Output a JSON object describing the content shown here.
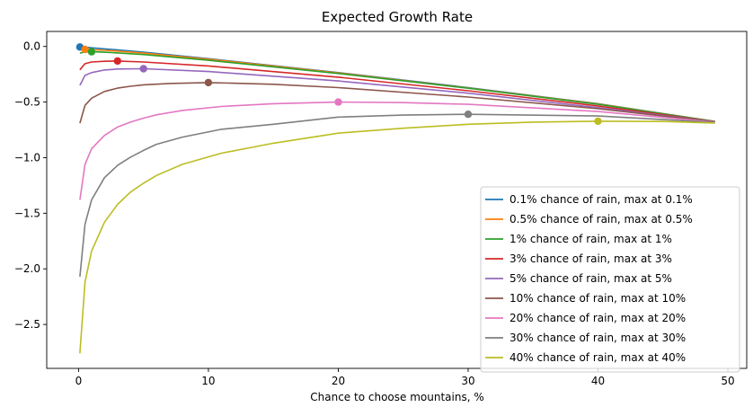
{
  "chart_data": {
    "type": "line",
    "title": "Expected Growth Rate",
    "xlabel": "Chance to choose mountains, %",
    "ylabel": "",
    "xlim": [
      -2.45,
      51.45
    ],
    "ylim": [
      -2.895,
      0.135
    ],
    "xticks": [
      0,
      10,
      20,
      30,
      40,
      50
    ],
    "yticks": [
      0.0,
      -0.5,
      -1.0,
      -1.5,
      -2.0,
      -2.5
    ],
    "ytick_labels": [
      "0.0",
      "−0.5",
      "−1.0",
      "−1.5",
      "−2.0",
      "−2.5"
    ],
    "grid": false,
    "legend_position": "lower right",
    "series": [
      {
        "name": "0.1% chance of rain, max at 0.1%",
        "color": "#1f77b4",
        "x": [
          0.1,
          0.5,
          1,
          2,
          3,
          5,
          10,
          20,
          30,
          40,
          49
        ],
        "y": [
          -0.005,
          -0.007,
          -0.012,
          -0.022,
          -0.031,
          -0.052,
          -0.11,
          -0.235,
          -0.37,
          -0.515,
          -0.675
        ],
        "max": [
          0.1,
          -0.005
        ]
      },
      {
        "name": "0.5% chance of rain, max at 0.5%",
        "color": "#ff7f0e",
        "x": [
          0.1,
          0.5,
          1,
          2,
          3,
          5,
          10,
          20,
          30,
          40,
          49
        ],
        "y": [
          -0.03,
          -0.027,
          -0.029,
          -0.035,
          -0.042,
          -0.06,
          -0.115,
          -0.238,
          -0.373,
          -0.517,
          -0.675
        ],
        "max": [
          0.5,
          -0.027
        ]
      },
      {
        "name": "1% chance of rain, max at 1%",
        "color": "#2ca02c",
        "x": [
          0.1,
          0.5,
          1,
          2,
          3,
          5,
          10,
          20,
          30,
          40,
          49
        ],
        "y": [
          -0.06,
          -0.05,
          -0.048,
          -0.052,
          -0.058,
          -0.073,
          -0.124,
          -0.243,
          -0.376,
          -0.52,
          -0.675
        ],
        "max": [
          1,
          -0.048
        ]
      },
      {
        "name": "3% chance of rain, max at 3%",
        "color": "#d62728",
        "x": [
          0.1,
          0.5,
          1,
          2,
          3,
          5,
          10,
          20,
          30,
          40,
          49
        ],
        "y": [
          -0.21,
          -0.155,
          -0.14,
          -0.133,
          -0.131,
          -0.14,
          -0.175,
          -0.276,
          -0.398,
          -0.535,
          -0.676
        ],
        "max": [
          3,
          -0.131
        ]
      },
      {
        "name": "5% chance of rain, max at 5%",
        "color": "#9467bd",
        "x": [
          0.1,
          0.5,
          1,
          2,
          3,
          5,
          10,
          20,
          30,
          40,
          49
        ],
        "y": [
          -0.35,
          -0.26,
          -0.235,
          -0.212,
          -0.203,
          -0.2,
          -0.225,
          -0.31,
          -0.42,
          -0.55,
          -0.677
        ],
        "max": [
          5,
          -0.2
        ]
      },
      {
        "name": "10% chance of rain, max at 10%",
        "color": "#8c564b",
        "x": [
          0.1,
          0.5,
          1,
          2,
          3,
          4,
          5,
          7,
          10,
          15,
          20,
          30,
          40,
          49
        ],
        "y": [
          -0.69,
          -0.53,
          -0.465,
          -0.405,
          -0.375,
          -0.358,
          -0.345,
          -0.333,
          -0.325,
          -0.34,
          -0.37,
          -0.455,
          -0.56,
          -0.678
        ],
        "max": [
          10,
          -0.325
        ]
      },
      {
        "name": "20% chance of rain, max at 20%",
        "color": "#e377c2",
        "x": [
          0.1,
          0.5,
          1,
          2,
          3,
          4,
          5,
          6,
          8,
          11,
          15,
          20,
          25,
          30,
          40,
          49
        ],
        "y": [
          -1.38,
          -1.06,
          -0.92,
          -0.8,
          -0.725,
          -0.68,
          -0.645,
          -0.615,
          -0.575,
          -0.54,
          -0.515,
          -0.5,
          -0.505,
          -0.52,
          -0.585,
          -0.68
        ],
        "max": [
          20,
          -0.5
        ]
      },
      {
        "name": "30% chance of rain, max at 30%",
        "color": "#7f7f7f",
        "x": [
          0.1,
          0.5,
          1,
          2,
          3,
          4,
          5,
          6,
          8,
          11,
          15,
          20,
          25,
          30,
          40,
          49
        ],
        "y": [
          -2.07,
          -1.6,
          -1.38,
          -1.18,
          -1.07,
          -0.995,
          -0.935,
          -0.88,
          -0.815,
          -0.745,
          -0.7,
          -0.635,
          -0.617,
          -0.61,
          -0.625,
          -0.683
        ],
        "max": [
          30,
          -0.61
        ]
      },
      {
        "name": "40% chance of rain, max at 40%",
        "color": "#bcbd22",
        "x": [
          0.1,
          0.5,
          1,
          2,
          3,
          4,
          5,
          6,
          8,
          11,
          15,
          20,
          25,
          30,
          35,
          40,
          45,
          49
        ],
        "y": [
          -2.76,
          -2.12,
          -1.84,
          -1.58,
          -1.42,
          -1.31,
          -1.23,
          -1.16,
          -1.06,
          -0.96,
          -0.87,
          -0.78,
          -0.735,
          -0.7,
          -0.68,
          -0.672,
          -0.675,
          -0.688
        ],
        "max": [
          40,
          -0.672
        ]
      }
    ]
  }
}
